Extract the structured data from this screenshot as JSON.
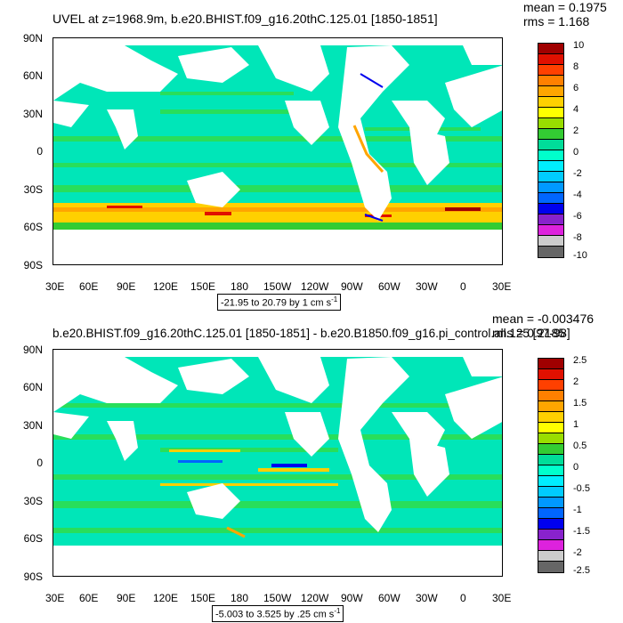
{
  "panel1": {
    "title": "UVEL at z=1968.9m, b.e20.BHIST.f09_g16.20thC.125.01 [1850-1851]",
    "mean": "mean = 0.1975",
    "rms": "rms = 1.168",
    "range": "-21.95 to 20.79 by 1 cm s",
    "range_sup": "-1",
    "legend_labels": [
      "10",
      "8",
      "6",
      "4",
      "2",
      "0",
      "-2",
      "-4",
      "-6",
      "-8",
      "-10"
    ]
  },
  "panel2": {
    "title": "b.e20.BHIST.f09_g16.20thC.125.01 [1850-1851] - b.e20.B1850.f09_g16.pi_control.all.125 [97-98]",
    "mean": "mean = -0.003476",
    "rms": "rms = 0.2185",
    "range": "-5.003 to 3.525 by .25 cm s",
    "range_sup": "-1",
    "legend_labels": [
      "2.5",
      "2",
      "1.5",
      "1",
      "0.5",
      "0",
      "-0.5",
      "-1",
      "-1.5",
      "-2",
      "-2.5"
    ]
  },
  "lat_labels": [
    "90N",
    "60N",
    "30N",
    "0",
    "30S",
    "60S",
    "90S"
  ],
  "lon_labels": [
    "30E",
    "60E",
    "90E",
    "120E",
    "150E",
    "180",
    "150W",
    "120W",
    "90W",
    "60W",
    "30W",
    "0",
    "30E"
  ],
  "colors": {
    "ocean_fill": "#00e6b8",
    "ocean_band": "#33dd44",
    "land": "#ffffff",
    "palette": [
      "#a00000",
      "#e01000",
      "#ff4000",
      "#ff8000",
      "#ffa500",
      "#ffd000",
      "#ffff00",
      "#99dd00",
      "#33cc33",
      "#00dd99",
      "#00ffcc",
      "#00eeff",
      "#00ccff",
      "#0099ff",
      "#0066ff",
      "#0000ee",
      "#8822cc",
      "#dd22dd",
      "#cccccc",
      "#666666"
    ]
  }
}
